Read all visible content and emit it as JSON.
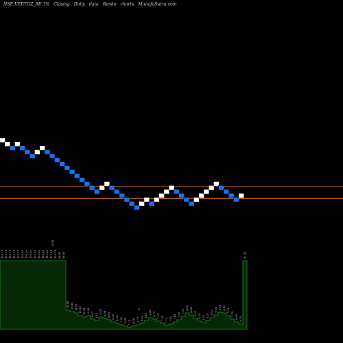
{
  "header": {
    "symbol": "NSE:VERTOZ_BE 3%",
    "closing": "Closing",
    "period": "Daily",
    "data": "data",
    "style": "Renko",
    "kind": "charts",
    "site": "MunafaSutra.com"
  },
  "colors": {
    "background": "#000000",
    "up_brick": "#ffffff",
    "down_brick": "#1a72e8",
    "level_line": "#c86a2a",
    "volume_fill": "#062806",
    "volume_edge": "#1f8f1f",
    "label_text": "#cfcfcf"
  },
  "chart_data": {
    "type": "renko",
    "title": "NSE:VERTOZ_BE 3%",
    "bricks": [
      {
        "col": 0,
        "level": 16.0,
        "dir": "up"
      },
      {
        "col": 1,
        "level": 15.0,
        "dir": "up"
      },
      {
        "col": 2,
        "level": 14.0,
        "dir": "down"
      },
      {
        "col": 3,
        "level": 15.0,
        "dir": "up"
      },
      {
        "col": 4,
        "level": 14.0,
        "dir": "down"
      },
      {
        "col": 5,
        "level": 13.0,
        "dir": "down"
      },
      {
        "col": 6,
        "level": 12.0,
        "dir": "down"
      },
      {
        "col": 7,
        "level": 13.0,
        "dir": "up"
      },
      {
        "col": 8,
        "level": 14.0,
        "dir": "up"
      },
      {
        "col": 9,
        "level": 13.0,
        "dir": "down"
      },
      {
        "col": 10,
        "level": 12.0,
        "dir": "down"
      },
      {
        "col": 11,
        "level": 11.0,
        "dir": "down"
      },
      {
        "col": 12,
        "level": 10.0,
        "dir": "down"
      },
      {
        "col": 13,
        "level": 9.0,
        "dir": "down"
      },
      {
        "col": 14,
        "level": 8.0,
        "dir": "down"
      },
      {
        "col": 15,
        "level": 7.0,
        "dir": "down"
      },
      {
        "col": 16,
        "level": 6.0,
        "dir": "down"
      },
      {
        "col": 17,
        "level": 5.0,
        "dir": "down"
      },
      {
        "col": 18,
        "level": 4.0,
        "dir": "down"
      },
      {
        "col": 19,
        "level": 3.0,
        "dir": "down"
      },
      {
        "col": 20,
        "level": 4.0,
        "dir": "up"
      },
      {
        "col": 21,
        "level": 5.0,
        "dir": "up"
      },
      {
        "col": 22,
        "level": 4.0,
        "dir": "down"
      },
      {
        "col": 23,
        "level": 3.0,
        "dir": "down"
      },
      {
        "col": 24,
        "level": 2.0,
        "dir": "down"
      },
      {
        "col": 25,
        "level": 1.0,
        "dir": "down"
      },
      {
        "col": 26,
        "level": 0.0,
        "dir": "down"
      },
      {
        "col": 27,
        "level": -1.0,
        "dir": "down"
      },
      {
        "col": 28,
        "level": 0.0,
        "dir": "up"
      },
      {
        "col": 29,
        "level": 1.0,
        "dir": "up"
      },
      {
        "col": 30,
        "level": 0.0,
        "dir": "down"
      },
      {
        "col": 31,
        "level": 1.0,
        "dir": "up"
      },
      {
        "col": 32,
        "level": 2.0,
        "dir": "up"
      },
      {
        "col": 33,
        "level": 3.0,
        "dir": "up"
      },
      {
        "col": 34,
        "level": 4.0,
        "dir": "up"
      },
      {
        "col": 35,
        "level": 3.0,
        "dir": "down"
      },
      {
        "col": 36,
        "level": 2.0,
        "dir": "down"
      },
      {
        "col": 37,
        "level": 1.0,
        "dir": "down"
      },
      {
        "col": 38,
        "level": 0.0,
        "dir": "down"
      },
      {
        "col": 39,
        "level": 1.0,
        "dir": "up"
      },
      {
        "col": 40,
        "level": 2.0,
        "dir": "up"
      },
      {
        "col": 41,
        "level": 3.0,
        "dir": "up"
      },
      {
        "col": 42,
        "level": 4.0,
        "dir": "up"
      },
      {
        "col": 43,
        "level": 5.0,
        "dir": "up"
      },
      {
        "col": 44,
        "level": 4.0,
        "dir": "down"
      },
      {
        "col": 45,
        "level": 3.0,
        "dir": "down"
      },
      {
        "col": 46,
        "level": 2.0,
        "dir": "down"
      },
      {
        "col": 47,
        "level": 1.0,
        "dir": "down"
      },
      {
        "col": 48,
        "level": 2.0,
        "dir": "up"
      }
    ],
    "levels": [
      4.3,
      1.3
    ],
    "volume": [
      100,
      100,
      100,
      100,
      100,
      100,
      100,
      100,
      100,
      100,
      100,
      100,
      100,
      100,
      100,
      100,
      28,
      26,
      24,
      20,
      18,
      20,
      15,
      13,
      18,
      16,
      14,
      11,
      9,
      7,
      5,
      3,
      5,
      7,
      9,
      13,
      17,
      15,
      12,
      9,
      6,
      8,
      11,
      14,
      19,
      24,
      21,
      16,
      12,
      10,
      13,
      17,
      21,
      25,
      24,
      20,
      15,
      11,
      8,
      100
    ],
    "volume_labels": [
      "123.71",
      "123.71",
      "123.71",
      "123.71",
      "123.71",
      "100.26",
      "100.26",
      "100.26",
      "103.32",
      "103.32",
      "103.32",
      "112.62",
      "101.74",
      "101.74",
      "98.85",
      "98.85",
      "98.85",
      "98.85",
      "11.16",
      "10.54",
      "10.01",
      "9.88",
      "9.67",
      "9.43",
      "9.04",
      "8.98",
      "8.60",
      "8.33",
      "8.14",
      "7.81",
      "7.64",
      "7.15",
      "6.98",
      "6.76",
      "6.42",
      "6.45",
      "6.58",
      "6.79",
      "7.03",
      "7.32",
      "7.73",
      "7.81",
      "7.48",
      "7.62",
      "7.50",
      "8.01",
      "8.68",
      "8.90",
      "9.25",
      "9.61",
      "9.97",
      "9.52",
      "9.09",
      "8.46",
      "8.12",
      "7.66",
      "7.12",
      "6.83",
      "6.55",
      "87.43"
    ],
    "volume_max_label": "6.38",
    "volume_mark_label": "4",
    "ylim": [
      -1.5,
      16.5
    ]
  }
}
